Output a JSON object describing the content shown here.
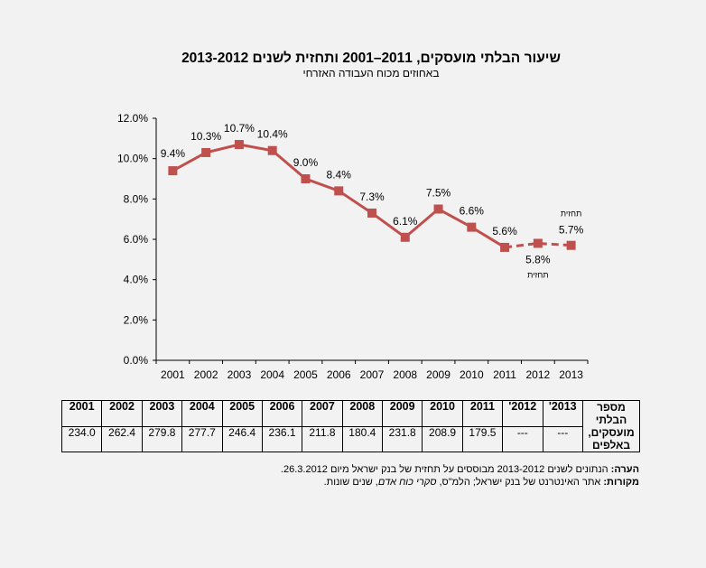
{
  "header": {
    "title": "שיעור הבלתי מועסקים, 2011–2001 ותחזית לשנים 2013-2012",
    "subtitle": "באחוזים מכוח העבודה האזרחי"
  },
  "chart_data": {
    "type": "line",
    "title": "שיעור הבלתי מועסקים, 2011–2001 ותחזית לשנים 2013-2012",
    "subtitle": "באחוזים מכוח העבודה האזרחי",
    "xlabel": "",
    "ylabel": "",
    "categories": [
      "2001",
      "2002",
      "2003",
      "2004",
      "2005",
      "2006",
      "2007",
      "2008",
      "2009",
      "2010",
      "2011",
      "2012",
      "2013"
    ],
    "ylim": [
      0,
      12
    ],
    "yticks": [
      0,
      2,
      4,
      6,
      8,
      10,
      12
    ],
    "ytick_labels": [
      "0.0%",
      "2.0%",
      "4.0%",
      "6.0%",
      "8.0%",
      "10.0%",
      "12.0%"
    ],
    "grid": false,
    "series": [
      {
        "name": "actual",
        "style": "solid",
        "color": "#c0504d",
        "x": [
          "2001",
          "2002",
          "2003",
          "2004",
          "2005",
          "2006",
          "2007",
          "2008",
          "2009",
          "2010",
          "2011"
        ],
        "values": [
          9.4,
          10.3,
          10.7,
          10.4,
          9.0,
          8.4,
          7.3,
          6.1,
          7.5,
          6.6,
          5.6
        ],
        "labels": [
          "9.4%",
          "10.3%",
          "10.7%",
          "10.4%",
          "9.0%",
          "8.4%",
          "7.3%",
          "6.1%",
          "7.5%",
          "6.6%",
          "5.6%"
        ]
      },
      {
        "name": "forecast",
        "style": "dashed",
        "color": "#c0504d",
        "x": [
          "2011",
          "2012",
          "2013"
        ],
        "values": [
          5.6,
          5.8,
          5.7
        ],
        "labels": [
          "",
          "5.8%",
          "5.7%"
        ]
      }
    ],
    "annotations": [
      {
        "text": "תחזית",
        "category": "2012",
        "position": "below"
      },
      {
        "text": "תחזית",
        "category": "2013",
        "position": "above"
      }
    ]
  },
  "table": {
    "row_label": "מספר הבלתי מועסקים, באלפים",
    "headers": [
      "2001",
      "2002",
      "2003",
      "2004",
      "2005",
      "2006",
      "2007",
      "2008",
      "2009",
      "2010",
      "2011",
      "2012'",
      "2013'"
    ],
    "values": [
      "234.0",
      "262.4",
      "279.8",
      "277.7",
      "246.4",
      "236.1",
      "211.8",
      "180.4",
      "231.8",
      "208.9",
      "179.5",
      "---",
      "---"
    ]
  },
  "notes": {
    "note_label": "הערה:",
    "note_text": " הנתונים לשנים 2013-2012 מבוססים על תחזית של בנק ישראל מיום 26.3.2012.",
    "sources_label": "מקורות:",
    "sources_text": " אתר האינטרנט של בנק ישראל; הלמ\"ס, ",
    "sources_italic": "סקרי כוח אדם",
    "sources_tail": ", שנים שונות."
  }
}
